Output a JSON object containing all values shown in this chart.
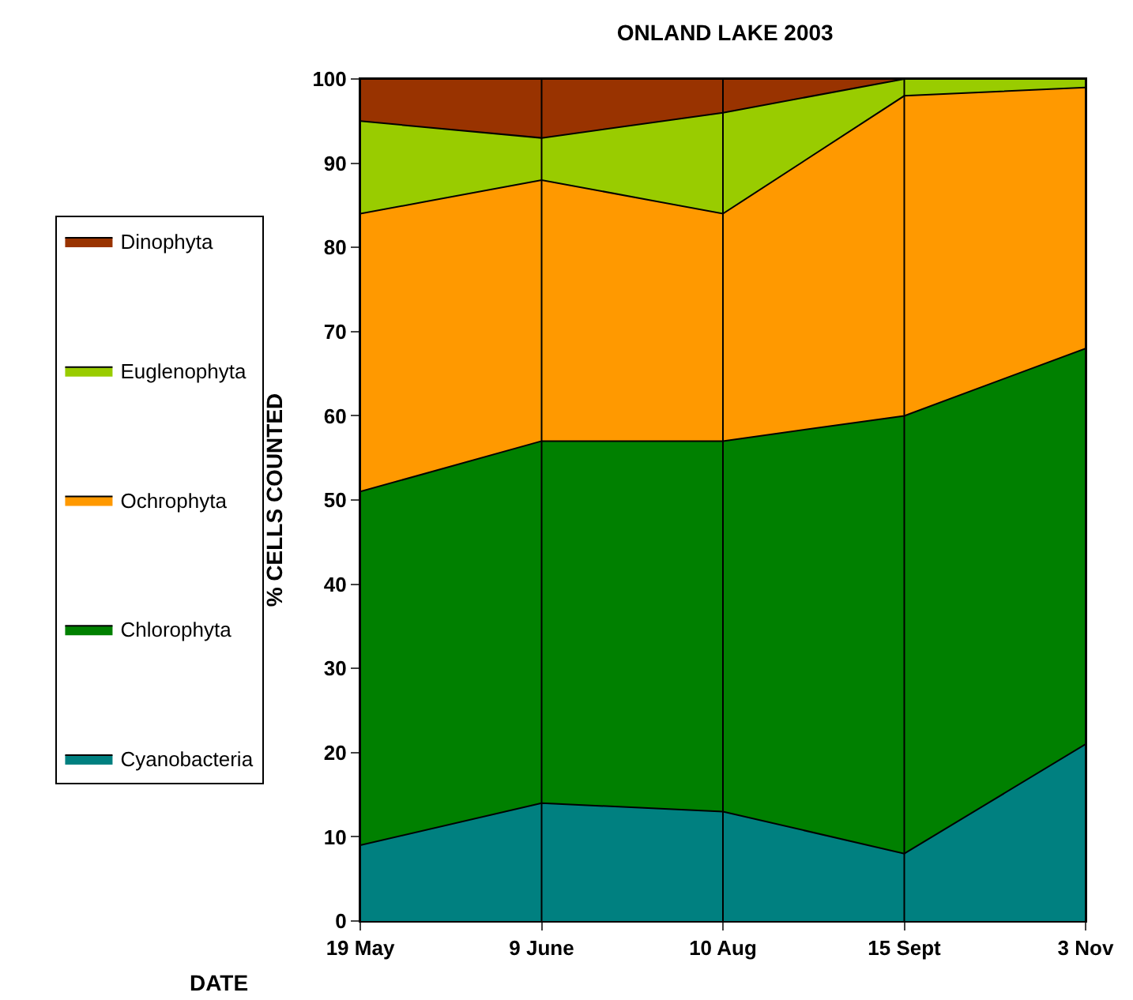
{
  "chart_data": {
    "type": "area",
    "stacked": true,
    "title": "ONLAND LAKE 2003",
    "xlabel": "DATE",
    "ylabel": "% CELLS COUNTED",
    "categories": [
      "19 May",
      "9 June",
      "10 Aug",
      "15 Sept",
      "3 Nov"
    ],
    "series": [
      {
        "name": "Cyanobacteria",
        "color": "#008080",
        "values": [
          9,
          14,
          13,
          8,
          21
        ]
      },
      {
        "name": "Chlorophyta",
        "color": "#008000",
        "values": [
          42,
          43,
          44,
          52,
          47
        ]
      },
      {
        "name": "Ochrophyta",
        "color": "#ff9900",
        "values": [
          33,
          31,
          27,
          38,
          31
        ]
      },
      {
        "name": "Euglenophyta",
        "color": "#99cc00",
        "values": [
          11,
          5,
          12,
          2,
          1
        ]
      },
      {
        "name": "Dinophyta",
        "color": "#993300",
        "values": [
          5,
          7,
          4,
          0,
          0
        ]
      }
    ],
    "ylim": [
      0,
      100
    ],
    "yticks": [
      0,
      10,
      20,
      30,
      40,
      50,
      60,
      70,
      80,
      90,
      100
    ],
    "grid": "x",
    "legend": "left"
  }
}
